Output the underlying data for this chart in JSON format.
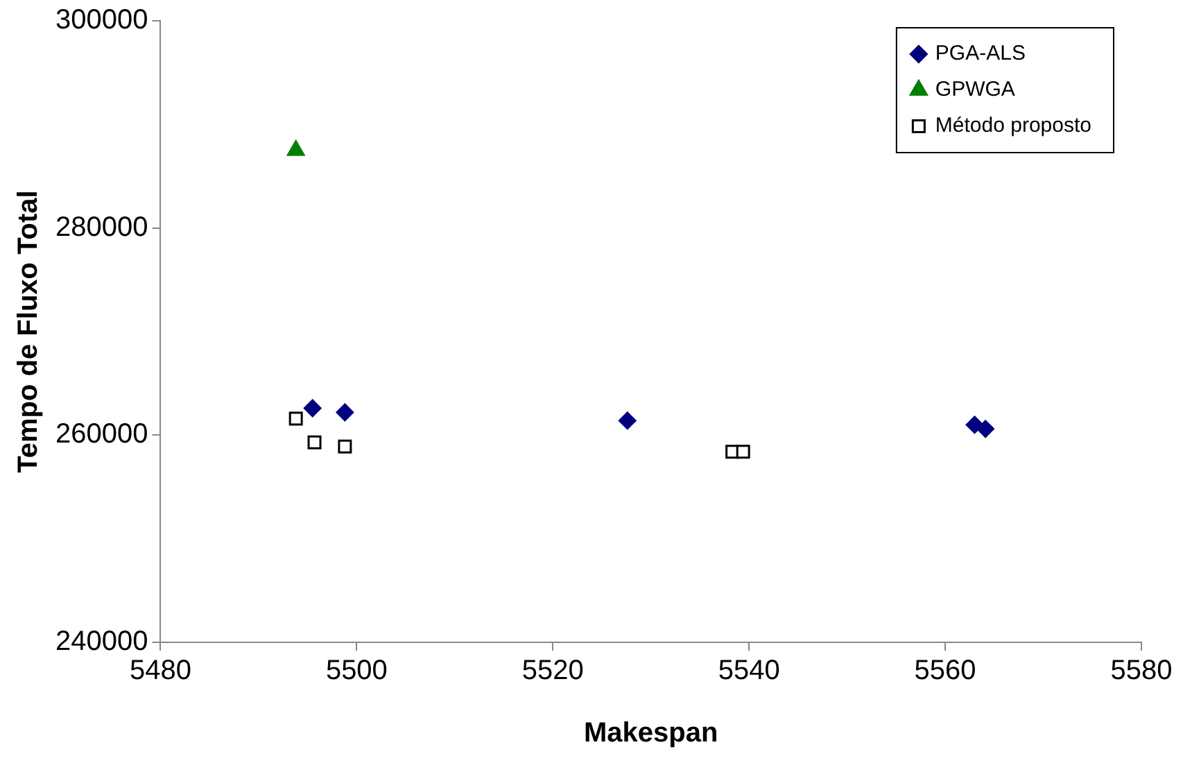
{
  "chart_data": {
    "type": "scatter",
    "xlabel": "Makespan",
    "ylabel": "Tempo de Fluxo Total",
    "xlim": [
      5480,
      5580
    ],
    "xticks": [
      5480,
      5500,
      5520,
      5540,
      5560,
      5580
    ],
    "ylim": [
      240000,
      300000
    ],
    "yticks": [
      240000,
      260000,
      280000,
      300000
    ],
    "grid": false,
    "legend": "top right",
    "series": [
      {
        "name": "PGA-ALS",
        "color": "#000080",
        "marker": "diamond",
        "x": [
          5495.5,
          5498.8,
          5527.6,
          5563.0,
          5564.1
        ],
        "values": [
          262600,
          262200,
          261400,
          261000,
          260600
        ]
      },
      {
        "name": "GPWGA",
        "color": "#008000",
        "marker": "triangle",
        "x": [
          5493.8
        ],
        "values": [
          287500
        ]
      },
      {
        "name": "Método proposto",
        "color": "#000000",
        "marker": "square",
        "x": [
          5493.8,
          5495.7,
          5498.8,
          5538.3,
          5539.4
        ],
        "values": [
          261600,
          259300,
          258900,
          258400,
          258400
        ]
      }
    ]
  }
}
